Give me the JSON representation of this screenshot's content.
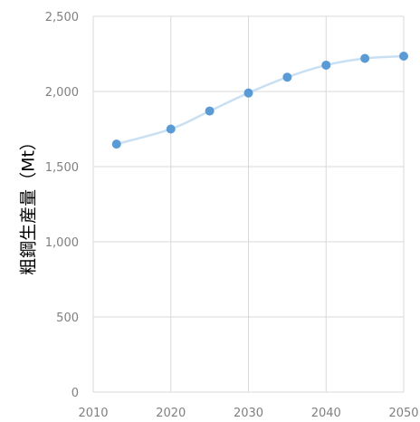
{
  "chart_data": {
    "type": "line",
    "title": "",
    "xlabel": "",
    "ylabel": "粗鋼生産量（Mt）",
    "x": [
      2013,
      2020,
      2025,
      2030,
      2035,
      2040,
      2045,
      2050
    ],
    "series": [
      {
        "values": [
          1650,
          1750,
          1870,
          1990,
          2095,
          2175,
          2220,
          2235
        ]
      }
    ],
    "xlim": [
      2010,
      2050
    ],
    "ylim": [
      0,
      2500
    ],
    "x_ticks": [
      "2010",
      "2020",
      "2030",
      "2040",
      "2050"
    ],
    "y_ticks": [
      "0",
      "500",
      "1,000",
      "1,500",
      "2,000",
      "2,500"
    ],
    "grid": true,
    "legend": "none",
    "colors": {
      "marker": "#5b9bd5",
      "line": "#c9dff2",
      "grid": "#d9d9d9",
      "axis": "#d9d9d9"
    }
  }
}
